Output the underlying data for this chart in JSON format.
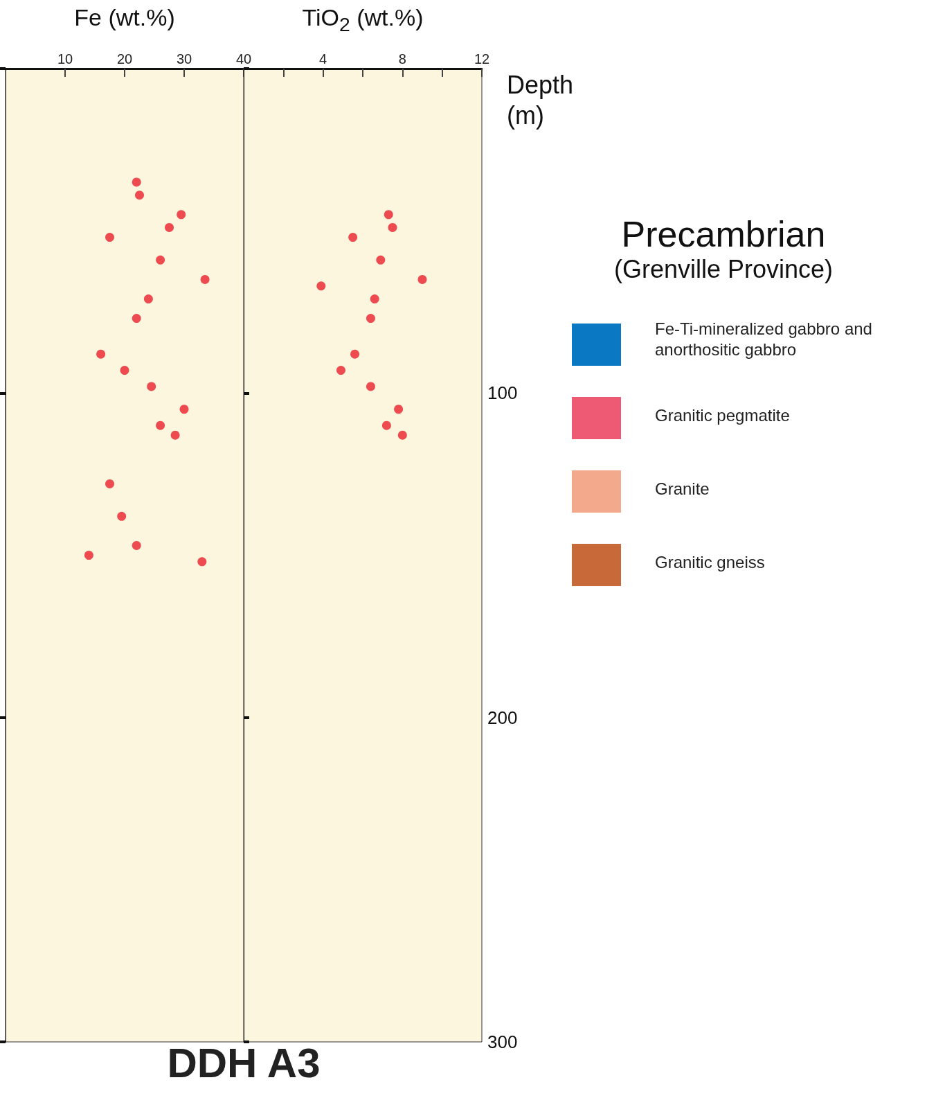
{
  "chart_data": [
    {
      "type": "scatter",
      "title": "DDH A3",
      "xlabel": "Fe (wt.%)",
      "xlim": [
        0,
        40
      ],
      "xticks": [
        10,
        20,
        30,
        40
      ],
      "ylim": [
        300,
        0
      ],
      "yticks": [
        {
          "value": 0,
          "label": null
        },
        {
          "value": 100,
          "label": null
        },
        {
          "value": 200,
          "label": null
        },
        {
          "value": 300,
          "label": null
        }
      ],
      "tick_labels": "x",
      "marker": "circle",
      "grid": false,
      "series": [
        {
          "color": "#e8202a",
          "x": [
            22,
            22.5,
            29.5,
            27.5,
            17.5,
            26,
            33.5,
            24,
            22,
            16,
            20,
            24.5,
            30,
            26,
            28.5,
            17.5,
            19.5,
            22,
            14,
            33
          ],
          "values": [
            35,
            39,
            45,
            49,
            52,
            59,
            65,
            71,
            77,
            88,
            93,
            98,
            105,
            110,
            113,
            128,
            138,
            147,
            150,
            152
          ]
        }
      ]
    },
    {
      "type": "scatter",
      "xlabel": "TiO$_{2}$ (wt.%)",
      "ylabel": "Depth (m)",
      "legend_title": "Precambrian",
      "annotations": [
        "(Grenville Province)",
        "Fe-Ti-mineralized gabbro and anorthositic gabbro",
        "Granitic pegmatite",
        "Granite",
        "Granitic gneiss"
      ],
      "xlim": [
        0,
        12
      ],
      "xticks": [
        {
          "value": 2,
          "label": null
        },
        4,
        {
          "value": 6,
          "label": null
        },
        8,
        {
          "value": 10,
          "label": null
        },
        12
      ],
      "ylim": [
        300,
        0
      ],
      "yticks": [
        {
          "value": 0,
          "label": null
        },
        100,
        200,
        300
      ],
      "marker": "circle",
      "grid": false,
      "series": [
        {
          "color": "#e8202a",
          "x": [
            7.3,
            7.5,
            5.5,
            6.9,
            9,
            3.9,
            6.6,
            6.4,
            5.6,
            4.9,
            6.4,
            7.8,
            7.2,
            8
          ],
          "values": [
            45,
            49,
            52,
            59,
            65,
            67,
            71,
            77,
            88,
            93,
            98,
            105,
            110,
            113
          ]
        }
      ]
    }
  ]
}
